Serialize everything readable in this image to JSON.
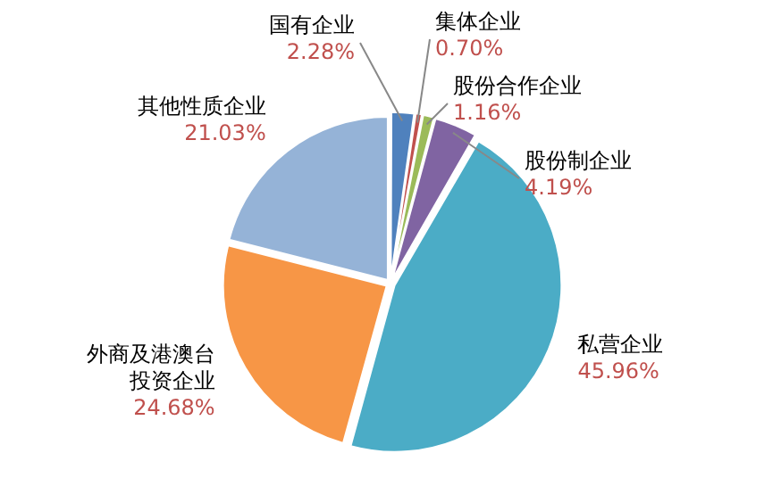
{
  "chart_data": {
    "type": "pie",
    "categories": [
      "国有企业",
      "集体企业",
      "股份合作企业",
      "股份制企业",
      "私营企业",
      "外商及港澳台投资企业",
      "其他性质企业"
    ],
    "values": [
      2.28,
      0.7,
      1.16,
      4.19,
      45.96,
      24.68,
      21.03
    ],
    "colors": [
      "#4f81bd",
      "#c0504d",
      "#9bbb59",
      "#8064a2",
      "#4bacc6",
      "#f79646",
      "#95b3d7"
    ],
    "value_labels": [
      "2.28%",
      "0.70%",
      "1.16%",
      "4.19%",
      "45.96%",
      "24.68%",
      "21.03%"
    ],
    "legend": false
  }
}
